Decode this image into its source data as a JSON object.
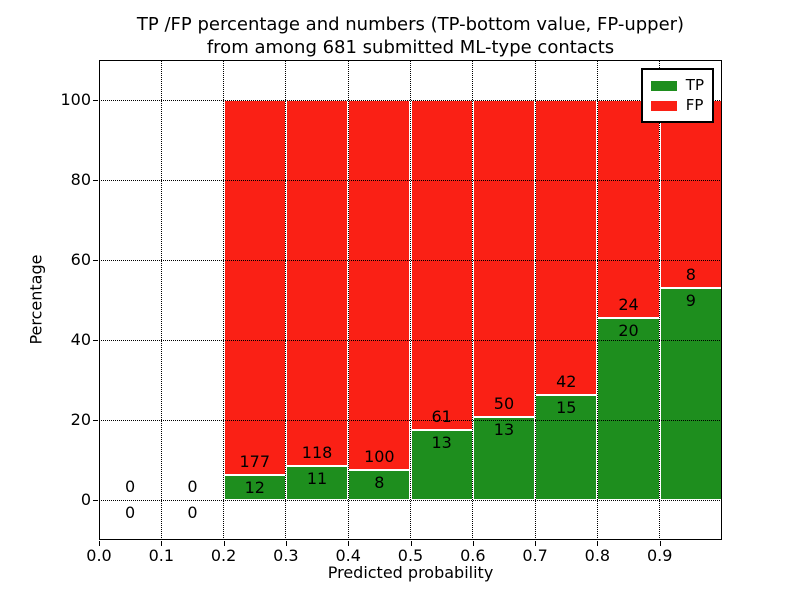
{
  "figure": {
    "title_line1": "TP /FP percentage and numbers (TP-bottom value, FP-upper)",
    "title_line2": "from among 681 submitted ML-type contacts"
  },
  "chart_data": {
    "type": "bar",
    "stacked": true,
    "normalized": "each bar scaled to 100%, labels show raw counts (TP bottom, FP upper)",
    "title": "TP /FP percentage and numbers (TP-bottom value, FP-upper) from among 681 submitted ML-type contacts",
    "xlabel": "Predicted probability",
    "ylabel": "Percentage",
    "xlim": [
      0.0,
      1.0
    ],
    "ylim": [
      -10,
      110
    ],
    "xticks": [
      "0.0",
      "0.1",
      "0.2",
      "0.3",
      "0.4",
      "0.5",
      "0.6",
      "0.7",
      "0.8",
      "0.9"
    ],
    "ytick_values": [
      0,
      20,
      40,
      60,
      80,
      100
    ],
    "grid": "dotted black, x and y",
    "legend_position": "upper right",
    "total_submitted": 681,
    "bin_width": 0.1,
    "bin_starts": [
      0.0,
      0.1,
      0.2,
      0.3,
      0.4,
      0.5,
      0.6,
      0.7,
      0.8,
      0.9
    ],
    "series": [
      {
        "name": "TP",
        "color": "#1e8e1e",
        "values": [
          0,
          0,
          12,
          11,
          8,
          13,
          13,
          15,
          20,
          9
        ]
      },
      {
        "name": "FP",
        "color": "#fa2015",
        "values": [
          0,
          0,
          177,
          118,
          100,
          61,
          50,
          42,
          24,
          8
        ]
      }
    ]
  }
}
